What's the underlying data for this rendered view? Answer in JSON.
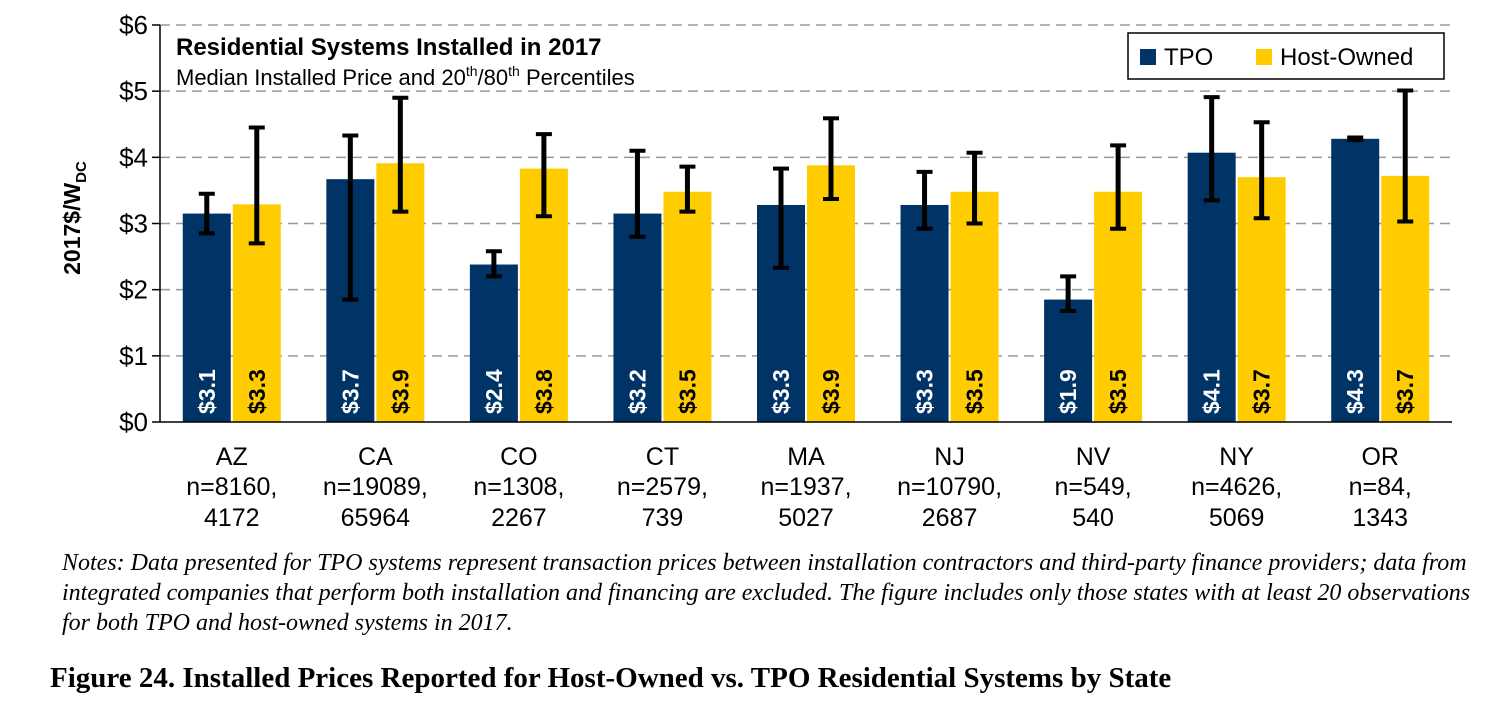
{
  "chart_data": {
    "type": "bar",
    "title": "Residential Systems Installed in 2017",
    "subtitle": "Median Installed Price and 20th/80th Percentiles",
    "ylabel": "2017$/W",
    "ylabel_sub": "DC",
    "ylim": [
      0,
      6
    ],
    "yticks": [
      "$0",
      "$1",
      "$2",
      "$3",
      "$4",
      "$5",
      "$6"
    ],
    "grid": true,
    "legend_position": "top-right",
    "categories": [
      "AZ",
      "CA",
      "CO",
      "CT",
      "MA",
      "NJ",
      "NV",
      "NY",
      "OR"
    ],
    "category_n_line1": [
      "n=8160,",
      "n=19089,",
      "n=1308,",
      "n=2579,",
      "n=1937,",
      "n=10790,",
      "n=549,",
      "n=4626,",
      "n=84,"
    ],
    "category_n_line2": [
      "4172",
      "65964",
      "2267",
      "739",
      "5027",
      "2687",
      "540",
      "5069",
      "1343"
    ],
    "series": [
      {
        "name": "TPO",
        "color": "#003366",
        "values": [
          3.15,
          3.67,
          2.38,
          3.15,
          3.28,
          3.28,
          1.85,
          4.07,
          4.28
        ],
        "labels": [
          "$3.1",
          "$3.7",
          "$2.4",
          "$3.2",
          "$3.3",
          "$3.3",
          "$1.9",
          "$4.1",
          "$4.3"
        ],
        "p20": [
          2.85,
          1.85,
          2.2,
          2.8,
          2.33,
          2.92,
          1.68,
          3.35,
          4.26
        ],
        "p80": [
          3.45,
          4.33,
          2.58,
          4.1,
          3.83,
          3.78,
          2.2,
          4.91,
          4.3
        ]
      },
      {
        "name": "Host-Owned",
        "color": "#ffcc00",
        "values": [
          3.29,
          3.91,
          3.83,
          3.48,
          3.88,
          3.48,
          3.48,
          3.7,
          3.72
        ],
        "labels": [
          "$3.3",
          "$3.9",
          "$3.8",
          "$3.5",
          "$3.9",
          "$3.5",
          "$3.5",
          "$3.7",
          "$3.7"
        ],
        "p20": [
          2.7,
          3.18,
          3.11,
          3.18,
          3.37,
          3.0,
          2.92,
          3.08,
          3.03
        ],
        "p80": [
          4.45,
          4.9,
          4.35,
          3.86,
          4.59,
          4.07,
          4.18,
          4.53,
          5.01
        ]
      }
    ]
  },
  "notes": "Notes: Data presented for TPO systems represent transaction prices between installation contractors and third-party finance providers; data from integrated companies that perform both installation and financing are excluded. The figure includes only those states with at least 20 observations for both TPO and host-owned systems in 2017.",
  "caption": "Figure 24. Installed Prices Reported for Host-Owned vs. TPO Residential Systems by State"
}
